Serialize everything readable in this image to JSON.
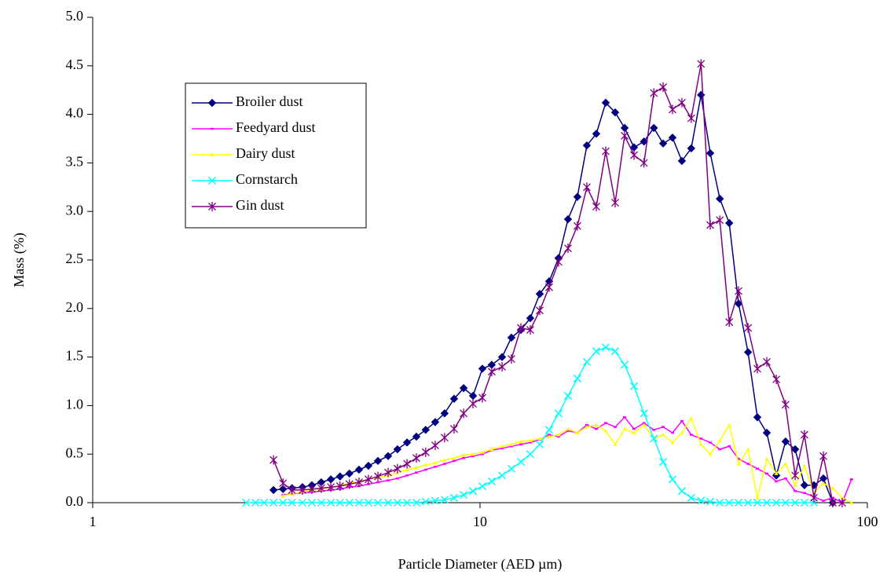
{
  "chart_data": {
    "type": "line",
    "x_label": "Particle Diameter (AED µm)",
    "y_label": "Mass (%)",
    "xscale": "log",
    "xlim": [
      1,
      100
    ],
    "xticks": [
      1,
      10,
      100
    ],
    "ylim": [
      0,
      5
    ],
    "yticks": [
      {
        "value": 0,
        "label": "0.0"
      },
      0.5,
      {
        "value": 1,
        "label": "1.0"
      },
      1.5,
      {
        "value": 2,
        "label": "2.0"
      },
      2.5,
      {
        "value": 3,
        "label": "3.0"
      },
      3.5,
      {
        "value": 4,
        "label": "4.0"
      },
      4.5,
      {
        "value": 5,
        "label": "5.0"
      }
    ],
    "grid": false,
    "legend": "upper left",
    "series": [
      {
        "name": "Broiler dust",
        "color": "#000080",
        "marker": "diamond",
        "x": [
          2.93,
          3.1,
          3.27,
          3.48,
          3.68,
          3.89,
          4.12,
          4.35,
          4.6,
          4.87,
          5.15,
          5.45,
          5.79,
          6.12,
          6.48,
          6.85,
          7.24,
          7.66,
          8.1,
          8.57,
          9.07,
          9.59,
          10.14,
          10.72,
          11.4,
          12.05,
          12.75,
          13.48,
          14.26,
          15.08,
          15.95,
          16.87,
          17.84,
          18.87,
          19.96,
          21.11,
          22.33,
          23.62,
          24.98,
          26.5,
          28.1,
          29.7,
          31.4,
          33.2,
          35.1,
          37.2,
          39.3,
          41.6,
          44.0,
          46.5,
          49.2,
          52.0,
          55.0,
          58.2,
          61.5,
          65.1,
          68.8,
          72.8,
          77.0,
          81.4
        ],
        "values": [
          0.13,
          0.14,
          0.15,
          0.16,
          0.18,
          0.21,
          0.24,
          0.27,
          0.3,
          0.34,
          0.38,
          0.43,
          0.48,
          0.55,
          0.62,
          0.68,
          0.75,
          0.83,
          0.92,
          1.07,
          1.18,
          1.1,
          1.38,
          1.42,
          1.5,
          1.7,
          1.78,
          1.9,
          2.15,
          2.28,
          2.52,
          2.92,
          3.15,
          3.68,
          3.8,
          4.12,
          4.02,
          3.86,
          3.66,
          3.72,
          3.86,
          3.7,
          3.76,
          3.52,
          3.65,
          4.2,
          3.6,
          3.13,
          2.88,
          2.05,
          1.55,
          0.88,
          0.72,
          0.28,
          0.63,
          0.55,
          0.18,
          0.18,
          0.25,
          0.0
        ]
      },
      {
        "name": "Feedyard dust",
        "color": "#ff00ff",
        "marker": "dash",
        "x": [
          3.1,
          3.27,
          3.48,
          3.68,
          3.89,
          4.12,
          4.35,
          4.6,
          4.87,
          5.15,
          5.45,
          5.79,
          6.12,
          6.48,
          6.85,
          7.24,
          7.66,
          8.1,
          8.57,
          9.07,
          9.59,
          10.14,
          10.72,
          11.4,
          12.05,
          12.75,
          13.48,
          14.26,
          15.08,
          15.95,
          16.87,
          17.84,
          18.87,
          19.96,
          21.11,
          22.33,
          23.62,
          24.98,
          26.5,
          28.1,
          29.7,
          31.4,
          33.2,
          35.1,
          37.2,
          39.3,
          41.6,
          44.0,
          46.5,
          49.2,
          52.0,
          55.0,
          58.2,
          61.5,
          65.1,
          68.8,
          72.8,
          77.0,
          81.4,
          86.1,
          91.0
        ],
        "values": [
          0.08,
          0.09,
          0.1,
          0.11,
          0.12,
          0.13,
          0.14,
          0.16,
          0.17,
          0.19,
          0.21,
          0.23,
          0.25,
          0.28,
          0.31,
          0.34,
          0.37,
          0.4,
          0.43,
          0.46,
          0.48,
          0.5,
          0.54,
          0.56,
          0.58,
          0.6,
          0.62,
          0.65,
          0.7,
          0.68,
          0.74,
          0.72,
          0.8,
          0.76,
          0.82,
          0.78,
          0.88,
          0.76,
          0.82,
          0.75,
          0.78,
          0.72,
          0.84,
          0.7,
          0.66,
          0.62,
          0.55,
          0.58,
          0.45,
          0.4,
          0.35,
          0.3,
          0.22,
          0.25,
          0.12,
          0.1,
          0.06,
          0.02,
          0.05,
          0.0,
          0.24
        ]
      },
      {
        "name": "Dairy dust",
        "color": "#ffff00",
        "marker": "triangle",
        "x": [
          3.1,
          3.27,
          3.48,
          3.68,
          3.89,
          4.12,
          4.35,
          4.6,
          4.87,
          5.15,
          5.45,
          5.79,
          6.12,
          6.48,
          6.85,
          7.24,
          7.66,
          8.1,
          8.57,
          9.07,
          9.59,
          10.14,
          10.72,
          11.4,
          12.05,
          12.75,
          13.48,
          14.26,
          15.08,
          15.95,
          16.87,
          17.84,
          18.87,
          19.96,
          21.11,
          22.33,
          23.62,
          24.98,
          26.5,
          28.1,
          29.7,
          31.4,
          33.2,
          35.1,
          37.2,
          39.3,
          41.6,
          44.0,
          46.5,
          49.2,
          52.0,
          55.0,
          58.2,
          61.5,
          65.1,
          68.8,
          72.8,
          77.0,
          81.4,
          86.1,
          91.0
        ],
        "values": [
          0.07,
          0.09,
          0.11,
          0.13,
          0.14,
          0.16,
          0.18,
          0.2,
          0.22,
          0.24,
          0.26,
          0.28,
          0.31,
          0.34,
          0.36,
          0.39,
          0.41,
          0.44,
          0.46,
          0.49,
          0.5,
          0.52,
          0.55,
          0.58,
          0.6,
          0.63,
          0.64,
          0.66,
          0.68,
          0.7,
          0.76,
          0.72,
          0.78,
          0.8,
          0.74,
          0.6,
          0.76,
          0.72,
          0.8,
          0.66,
          0.7,
          0.62,
          0.72,
          0.87,
          0.6,
          0.5,
          0.64,
          0.8,
          0.4,
          0.55,
          0.05,
          0.45,
          0.3,
          0.4,
          0.18,
          0.38,
          0.1,
          0.2,
          0.15,
          0.05,
          0.0
        ]
      },
      {
        "name": "Cornstarch",
        "color": "#00ffff",
        "marker": "x",
        "x": [
          2.49,
          2.63,
          2.77,
          2.93,
          3.1,
          3.27,
          3.48,
          3.68,
          3.89,
          4.12,
          4.35,
          4.6,
          4.87,
          5.15,
          5.45,
          5.79,
          6.12,
          6.48,
          6.85,
          7.24,
          7.66,
          8.1,
          8.57,
          9.07,
          9.59,
          10.14,
          10.72,
          11.4,
          12.05,
          12.75,
          13.48,
          14.26,
          15.08,
          15.95,
          16.87,
          17.84,
          18.87,
          19.96,
          21.11,
          22.33,
          23.62,
          24.98,
          26.5,
          28.1,
          29.7,
          31.4,
          33.2,
          35.1,
          37.2,
          39.3,
          41.6,
          44.0,
          46.5,
          49.2,
          52.0,
          55.0,
          58.2,
          61.5,
          65.1,
          68.8,
          72.8
        ],
        "values": [
          0,
          0,
          0,
          0,
          0,
          0,
          0,
          0,
          0,
          0,
          0,
          0,
          0,
          0,
          0,
          0,
          0,
          0,
          0,
          0.01,
          0.02,
          0.03,
          0.05,
          0.08,
          0.12,
          0.17,
          0.22,
          0.28,
          0.35,
          0.42,
          0.5,
          0.6,
          0.75,
          0.92,
          1.1,
          1.28,
          1.45,
          1.56,
          1.6,
          1.56,
          1.42,
          1.2,
          0.92,
          0.66,
          0.42,
          0.24,
          0.12,
          0.05,
          0.02,
          0.01,
          0,
          0,
          0,
          0,
          0,
          0,
          0,
          0,
          0,
          0,
          0
        ]
      },
      {
        "name": "Gin dust",
        "color": "#800080",
        "marker": "asterisk",
        "x": [
          2.93,
          3.1,
          3.27,
          3.48,
          3.68,
          3.89,
          4.12,
          4.35,
          4.6,
          4.87,
          5.15,
          5.45,
          5.79,
          6.12,
          6.48,
          6.85,
          7.24,
          7.66,
          8.1,
          8.57,
          9.07,
          9.59,
          10.14,
          10.72,
          11.4,
          12.05,
          12.75,
          13.48,
          14.26,
          15.08,
          15.95,
          16.87,
          17.84,
          18.87,
          19.96,
          21.11,
          22.33,
          23.62,
          24.98,
          26.5,
          28.1,
          29.7,
          31.4,
          33.2,
          35.1,
          37.2,
          39.3,
          41.6,
          44.0,
          46.5,
          49.2,
          52.0,
          55.0,
          58.2,
          61.5,
          65.1,
          68.8,
          72.8,
          77.0,
          81.4,
          86.1
        ],
        "values": [
          0.44,
          0.2,
          0.13,
          0.13,
          0.14,
          0.15,
          0.16,
          0.17,
          0.19,
          0.21,
          0.24,
          0.27,
          0.31,
          0.35,
          0.4,
          0.46,
          0.52,
          0.59,
          0.67,
          0.76,
          0.92,
          1.02,
          1.08,
          1.35,
          1.4,
          1.48,
          1.8,
          1.78,
          1.98,
          2.22,
          2.48,
          2.62,
          2.85,
          3.25,
          3.05,
          3.62,
          3.09,
          3.78,
          3.58,
          3.5,
          4.22,
          4.28,
          4.05,
          4.12,
          3.96,
          4.52,
          2.86,
          2.91,
          1.86,
          2.18,
          1.8,
          1.38,
          1.45,
          1.27,
          1.01,
          0.28,
          0.7,
          0.05,
          0.48,
          0.0,
          0.0
        ]
      }
    ]
  }
}
